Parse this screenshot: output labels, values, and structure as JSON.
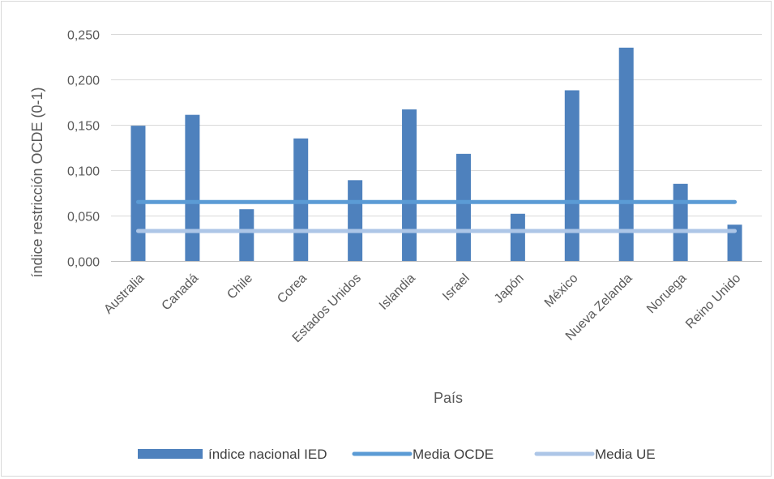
{
  "chart_data": {
    "type": "bar",
    "title": "",
    "xlabel": "País",
    "ylabel": "índice restricción OCDE (0-1)",
    "ylim": [
      0,
      0.25
    ],
    "yticks": [
      "0,000",
      "0,050",
      "0,100",
      "0,150",
      "0,200",
      "0,250"
    ],
    "ytick_values": [
      0,
      0.05,
      0.1,
      0.15,
      0.2,
      0.25
    ],
    "grid": true,
    "legend_position": "bottom",
    "categories": [
      "Australia",
      "Canadá",
      "Chile",
      "Corea",
      "Estados Unidos",
      "Islandia",
      "Israel",
      "Japón",
      "México",
      "Nueva Zelanda",
      "Noruega",
      "Reino Unido"
    ],
    "series": [
      {
        "name": "índice nacional IED",
        "kind": "bar",
        "color": "#4e81bd",
        "values": [
          0.149,
          0.161,
          0.057,
          0.135,
          0.089,
          0.167,
          0.118,
          0.052,
          0.188,
          0.235,
          0.085,
          0.04
        ]
      },
      {
        "name": "Media OCDE",
        "kind": "line",
        "color": "#5b9bd5",
        "values": [
          0.065,
          0.065,
          0.065,
          0.065,
          0.065,
          0.065,
          0.065,
          0.065,
          0.065,
          0.065,
          0.065,
          0.065
        ]
      },
      {
        "name": "Media UE",
        "kind": "line",
        "color": "#adc6e7",
        "values": [
          0.033,
          0.033,
          0.033,
          0.033,
          0.033,
          0.033,
          0.033,
          0.033,
          0.033,
          0.033,
          0.033,
          0.033
        ]
      }
    ]
  }
}
